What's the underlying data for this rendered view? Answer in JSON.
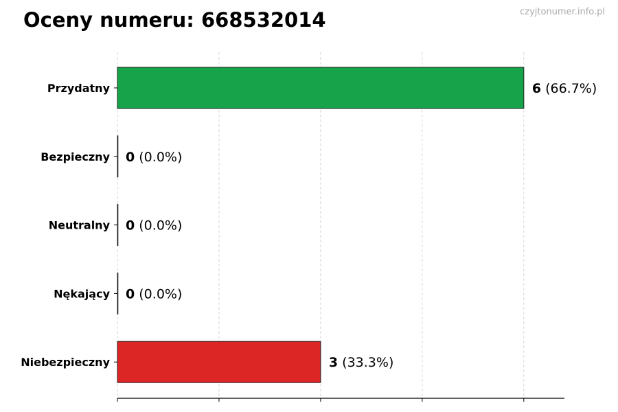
{
  "title": "Oceny numeru: 668532014",
  "watermark": "czyjtonumer.info.pl",
  "chart_data": {
    "type": "bar",
    "orientation": "horizontal",
    "categories": [
      "Przydatny",
      "Bezpieczny",
      "Neutralny",
      "Nękający",
      "Niebezpieczny"
    ],
    "values": [
      6,
      0,
      0,
      0,
      3
    ],
    "percent_labels": [
      "(66.7%)",
      "(0.0%)",
      "(0.0%)",
      "(0.0%)",
      "(33.3%)"
    ],
    "colors": [
      "#16a34a",
      "#16a34a",
      "#9ca3af",
      "#dc2626",
      "#dc2626"
    ],
    "xlim": [
      0,
      6.6
    ],
    "grid_x": [
      0,
      1.5,
      3,
      4.5,
      6
    ],
    "grid": true,
    "title": "Oceny numeru: 668532014"
  }
}
